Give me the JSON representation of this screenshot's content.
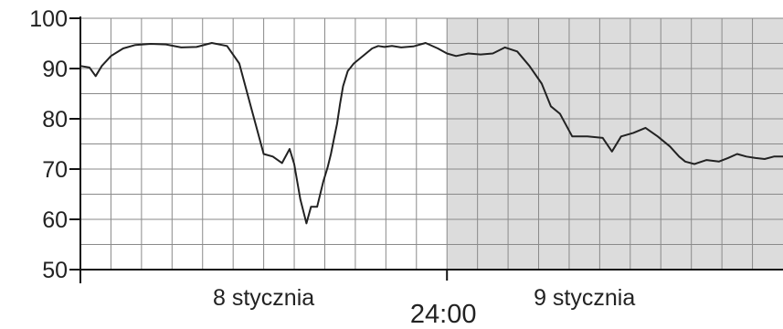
{
  "chart_data": {
    "type": "line",
    "title": "",
    "xlabel": "",
    "ylabel": "",
    "ylim": [
      50,
      100
    ],
    "yticks": [
      50,
      60,
      70,
      80,
      90,
      100
    ],
    "grid": true,
    "x_unit": "hours",
    "x_range": [
      0,
      46
    ],
    "midnight_label": "24:00",
    "day_labels": [
      {
        "text": "8 stycznia",
        "at_hour": 12
      },
      {
        "text": "9 stycznia",
        "at_hour": 33
      }
    ],
    "shaded_region": {
      "from_hour": 24,
      "to_hour": 46,
      "color": "#dcdcdc"
    },
    "line_color": "#222222",
    "series": [
      {
        "x": [
          0,
          0.6,
          1.0,
          1.4,
          2.0,
          2.8,
          3.6,
          4.6,
          5.6,
          6.6,
          7.6,
          8.6,
          9.6,
          10.4,
          11.2,
          12.0,
          12.6,
          13.2,
          13.7,
          14.0,
          14.4,
          14.8,
          15.1,
          15.5,
          15.9,
          16.2,
          16.4,
          16.6,
          16.8,
          17.0,
          17.2,
          17.5,
          17.9,
          18.3,
          18.7,
          19.1,
          19.5,
          19.9,
          20.4,
          21.0,
          21.8,
          22.6,
          23.4,
          24.0,
          24.6,
          25.4,
          26.2,
          27.0,
          27.8,
          28.6,
          29.4,
          30.2,
          30.8,
          31.4,
          32.2,
          33.2,
          34.2,
          34.8,
          35.4,
          36.2,
          37.0,
          37.8,
          38.6,
          39.2,
          39.6,
          40.2,
          41.0,
          41.8,
          42.4,
          43.0,
          43.6,
          44.2,
          44.8,
          45.4,
          46
        ],
        "values": [
          90.5,
          90.2,
          88.5,
          90.5,
          92.5,
          94,
          94.7,
          94.9,
          94.8,
          94.2,
          94.3,
          95.1,
          94.5,
          91,
          82,
          73,
          72.5,
          71.2,
          74,
          71,
          64,
          59.2,
          62.5,
          62.5,
          67.5,
          70.5,
          73,
          76,
          79,
          83,
          86.5,
          89.5,
          91,
          92,
          93,
          94,
          94.5,
          94.3,
          94.5,
          94.2,
          94.4,
          95.1,
          94,
          93,
          92.5,
          93,
          92.8,
          93,
          94.2,
          93.4,
          90.5,
          87,
          82.5,
          81,
          76.5,
          76.5,
          76.2,
          73.5,
          76.5,
          77.2,
          78.2,
          76.5,
          74.5,
          72.5,
          71.5,
          71,
          71.8,
          71.5,
          72.2,
          73,
          72.5,
          72.2,
          72,
          72.5,
          72.5
        ]
      }
    ]
  }
}
